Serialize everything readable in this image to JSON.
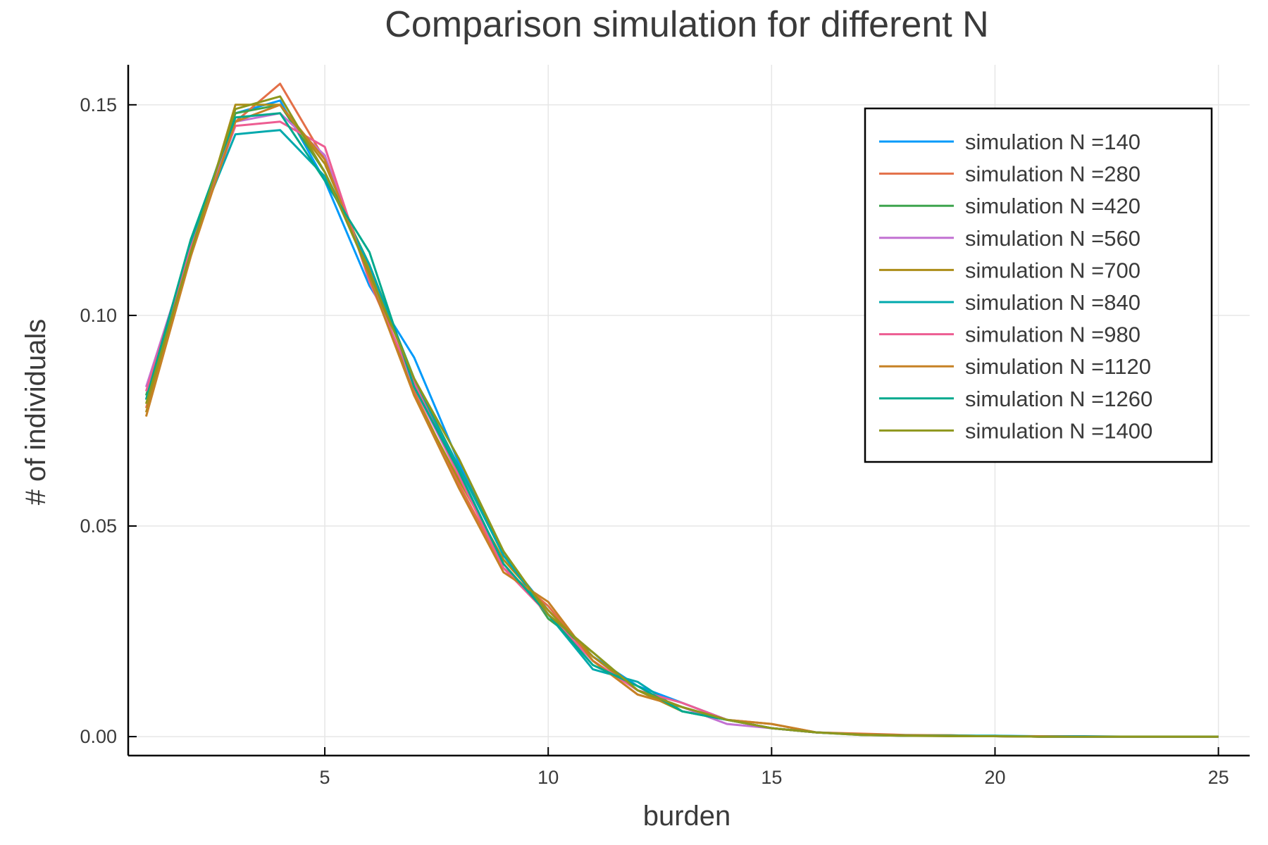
{
  "chart_data": {
    "type": "line",
    "title": "Comparison simulation for different N",
    "xlabel": "burden",
    "ylabel": "# of individuals",
    "xlim": [
      0.6,
      25.7
    ],
    "ylim": [
      -0.0045,
      0.1595
    ],
    "xticks": [
      5,
      10,
      15,
      20,
      25
    ],
    "xtick_labels": [
      "5",
      "10",
      "15",
      "20",
      "25"
    ],
    "yticks": [
      0.0,
      0.05,
      0.1,
      0.15
    ],
    "ytick_labels": [
      "0.00",
      "0.05",
      "0.10",
      "0.15"
    ],
    "grid": true,
    "legend_position": "top-right",
    "x": [
      1,
      2,
      3,
      4,
      5,
      6,
      7,
      8,
      9,
      10,
      11,
      12,
      13,
      14,
      15,
      16,
      17,
      18,
      19,
      20,
      21,
      22,
      23,
      24,
      25
    ],
    "series": [
      {
        "name": "simulation N =140",
        "color": "#009AFA",
        "values": [
          0.08,
          0.117,
          0.148,
          0.151,
          0.132,
          0.107,
          0.09,
          0.065,
          0.043,
          0.03,
          0.019,
          0.012,
          0.008,
          0.004,
          0.002,
          0.001,
          0.0005,
          0.0003,
          0.0002,
          0.0002,
          0.0001,
          0.0001,
          0.0,
          0.0,
          0.0
        ]
      },
      {
        "name": "simulation N =280",
        "color": "#E36F47",
        "values": [
          0.078,
          0.116,
          0.146,
          0.155,
          0.137,
          0.11,
          0.082,
          0.06,
          0.04,
          0.031,
          0.018,
          0.01,
          0.007,
          0.004,
          0.003,
          0.001,
          0.0007,
          0.0004,
          0.0003,
          0.0001,
          0.0001,
          0.0,
          0.0,
          0.0,
          0.0
        ]
      },
      {
        "name": "simulation N =420",
        "color": "#3EA44E",
        "values": [
          0.081,
          0.117,
          0.148,
          0.15,
          0.134,
          0.112,
          0.085,
          0.064,
          0.044,
          0.028,
          0.02,
          0.011,
          0.006,
          0.004,
          0.002,
          0.001,
          0.0005,
          0.0002,
          0.0002,
          0.0001,
          0.0,
          0.0,
          0.0,
          0.0,
          0.0
        ]
      },
      {
        "name": "simulation N =560",
        "color": "#C271D2",
        "values": [
          0.083,
          0.116,
          0.146,
          0.148,
          0.138,
          0.109,
          0.083,
          0.062,
          0.041,
          0.029,
          0.018,
          0.011,
          0.007,
          0.003,
          0.002,
          0.001,
          0.0005,
          0.0003,
          0.0001,
          0.0001,
          0.0,
          0.0,
          0.0,
          0.0,
          0.0
        ]
      },
      {
        "name": "simulation N =700",
        "color": "#AC8D18",
        "values": [
          0.077,
          0.114,
          0.15,
          0.15,
          0.136,
          0.111,
          0.081,
          0.061,
          0.042,
          0.03,
          0.019,
          0.011,
          0.006,
          0.004,
          0.002,
          0.001,
          0.0005,
          0.0003,
          0.0002,
          0.0001,
          0.0,
          0.0,
          0.0,
          0.0,
          0.0
        ]
      },
      {
        "name": "simulation N =840",
        "color": "#00A9AD",
        "values": [
          0.08,
          0.117,
          0.143,
          0.144,
          0.133,
          0.112,
          0.084,
          0.064,
          0.043,
          0.029,
          0.016,
          0.013,
          0.006,
          0.004,
          0.002,
          0.001,
          0.0005,
          0.0003,
          0.0002,
          0.0001,
          0.0,
          0.0,
          0.0,
          0.0,
          0.0
        ]
      },
      {
        "name": "simulation N =980",
        "color": "#ED5D92",
        "values": [
          0.082,
          0.116,
          0.145,
          0.146,
          0.14,
          0.108,
          0.084,
          0.062,
          0.04,
          0.029,
          0.018,
          0.011,
          0.008,
          0.004,
          0.002,
          0.001,
          0.0005,
          0.0002,
          0.0002,
          0.0001,
          0.0,
          0.0,
          0.0,
          0.0,
          0.0
        ]
      },
      {
        "name": "simulation N =1120",
        "color": "#C68125",
        "values": [
          0.076,
          0.114,
          0.146,
          0.15,
          0.137,
          0.109,
          0.081,
          0.059,
          0.039,
          0.032,
          0.018,
          0.01,
          0.007,
          0.004,
          0.003,
          0.001,
          0.0006,
          0.0003,
          0.0003,
          0.0001,
          0.0,
          0.0,
          0.0,
          0.0,
          0.0
        ]
      },
      {
        "name": "simulation N =1260",
        "color": "#00A98D",
        "values": [
          0.08,
          0.118,
          0.147,
          0.148,
          0.132,
          0.115,
          0.083,
          0.063,
          0.041,
          0.029,
          0.017,
          0.012,
          0.006,
          0.004,
          0.002,
          0.001,
          0.0004,
          0.0002,
          0.0002,
          0.0002,
          0.0,
          0.0,
          0.0,
          0.0,
          0.0
        ]
      },
      {
        "name": "simulation N =1400",
        "color": "#8E971D",
        "values": [
          0.079,
          0.115,
          0.149,
          0.152,
          0.134,
          0.11,
          0.085,
          0.066,
          0.044,
          0.029,
          0.02,
          0.011,
          0.007,
          0.004,
          0.002,
          0.001,
          0.0004,
          0.0002,
          0.0001,
          0.0001,
          0.0,
          0.0,
          0.0,
          0.0,
          0.0
        ]
      }
    ]
  }
}
